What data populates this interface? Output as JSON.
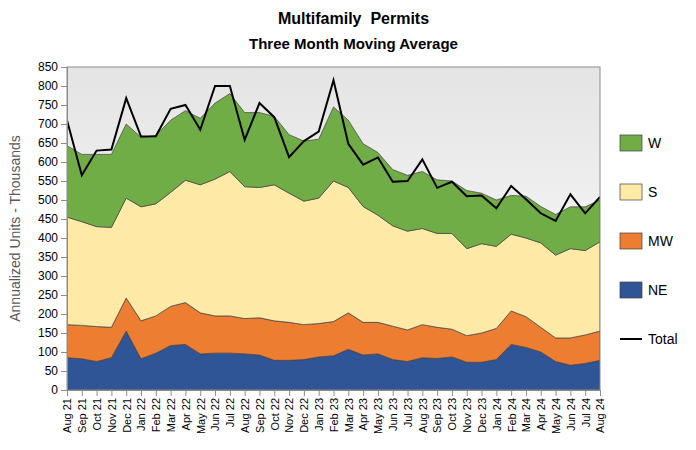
{
  "chart_data": {
    "type": "area",
    "title": "Multifamily  Permits",
    "subtitle": "Three Month Moving Average",
    "y_label": "Annualized Units - Thousands",
    "categories": [
      "Aug 21",
      "Sep 21",
      "Oct 21",
      "Nov 21",
      "Dec 21",
      "Jan 22",
      "Feb 22",
      "Mar 22",
      "Apr 22",
      "May 22",
      "Jun 22",
      "Jul 22",
      "Aug 22",
      "Sep 22",
      "Oct 22",
      "Nov 22",
      "Dec 22",
      "Jan 23",
      "Feb 23",
      "Mar 23",
      "Apr 23",
      "May 23",
      "Jun 23",
      "Jul 23",
      "Aug 23",
      "Sep 23",
      "Oct 23",
      "Nov 23",
      "Dec 23",
      "Jan 24",
      "Feb 24",
      "Mar 24",
      "Apr 24",
      "May 24",
      "Jun 24",
      "Jul 24",
      "Aug 24"
    ],
    "series": [
      {
        "name": "W",
        "color": "#70ad47",
        "type": "area",
        "values": [
          188,
          177,
          190,
          192,
          195,
          183,
          180,
          190,
          183,
          175,
          200,
          205,
          195,
          197,
          180,
          154,
          158,
          155,
          195,
          177,
          165,
          165,
          148,
          147,
          150,
          141,
          138,
          153,
          133,
          122,
          102,
          110,
          96,
          107,
          110,
          115,
          110
        ]
      },
      {
        "name": "S",
        "color": "#ffe9a6",
        "type": "area",
        "values": [
          283,
          273,
          263,
          263,
          263,
          300,
          295,
          300,
          322,
          337,
          360,
          380,
          347,
          343,
          358,
          340,
          325,
          330,
          370,
          330,
          305,
          282,
          264,
          260,
          253,
          247,
          252,
          229,
          235,
          216,
          202,
          207,
          222,
          218,
          235,
          222,
          235
        ]
      },
      {
        "name": "MW",
        "color": "#ed7d31",
        "type": "area",
        "values": [
          87,
          88,
          92,
          80,
          87,
          100,
          98,
          103,
          110,
          108,
          98,
          98,
          93,
          98,
          104,
          100,
          92,
          88,
          90,
          96,
          86,
          83,
          88,
          83,
          87,
          82,
          73,
          70,
          77,
          82,
          88,
          81,
          65,
          62,
          72,
          75,
          77
        ]
      },
      {
        "name": "NE",
        "color": "#2f5597",
        "type": "area",
        "values": [
          85,
          82,
          75,
          85,
          155,
          82,
          97,
          117,
          120,
          95,
          97,
          97,
          95,
          92,
          78,
          78,
          80,
          87,
          90,
          107,
          92,
          95,
          80,
          75,
          85,
          83,
          87,
          73,
          73,
          80,
          120,
          112,
          100,
          75,
          65,
          70,
          78
        ]
      },
      {
        "name": "Total",
        "color": "#000000",
        "type": "line",
        "values": [
          710,
          565,
          630,
          633,
          768,
          667,
          668,
          740,
          750,
          685,
          800,
          800,
          658,
          755,
          718,
          613,
          655,
          680,
          815,
          648,
          593,
          612,
          548,
          550,
          607,
          532,
          548,
          510,
          512,
          478,
          537,
          502,
          465,
          445,
          515,
          465,
          508
        ]
      }
    ],
    "stacked": true,
    "ylim": [
      0,
      850
    ],
    "yticks": [
      0,
      50,
      100,
      150,
      200,
      250,
      300,
      350,
      400,
      450,
      500,
      550,
      600,
      650,
      700,
      750,
      800,
      850
    ],
    "grid": false,
    "legend": "right"
  }
}
